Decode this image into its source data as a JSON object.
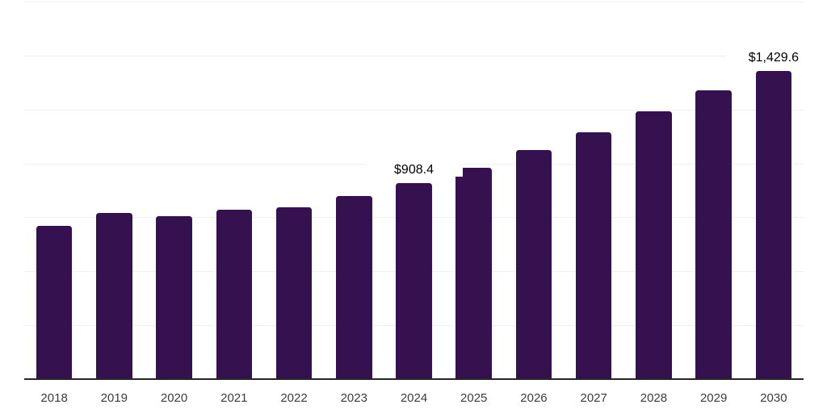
{
  "chart_data": {
    "type": "bar",
    "title": "",
    "xlabel": "",
    "ylabel": "",
    "categories": [
      "2018",
      "2019",
      "2020",
      "2021",
      "2022",
      "2023",
      "2024",
      "2025",
      "2026",
      "2027",
      "2028",
      "2029",
      "2030"
    ],
    "values": [
      711,
      771,
      757,
      786,
      798,
      850,
      908.4,
      980,
      1063,
      1146,
      1240,
      1337,
      1429.6
    ],
    "point_labels": {
      "2024": "$908.4",
      "2030": "$1,429.6"
    },
    "ylim": [
      0,
      1750
    ],
    "gridline_step": 250,
    "grid": "horizontal",
    "legend": "none",
    "y_tick_labels_visible": false,
    "colors": {
      "bar": "#35114F",
      "axis_line": "#262626",
      "gridline": "#f1f1f1",
      "tick_label": "#3c3c3c",
      "value_label": "#000000",
      "background": "#ffffff"
    }
  }
}
